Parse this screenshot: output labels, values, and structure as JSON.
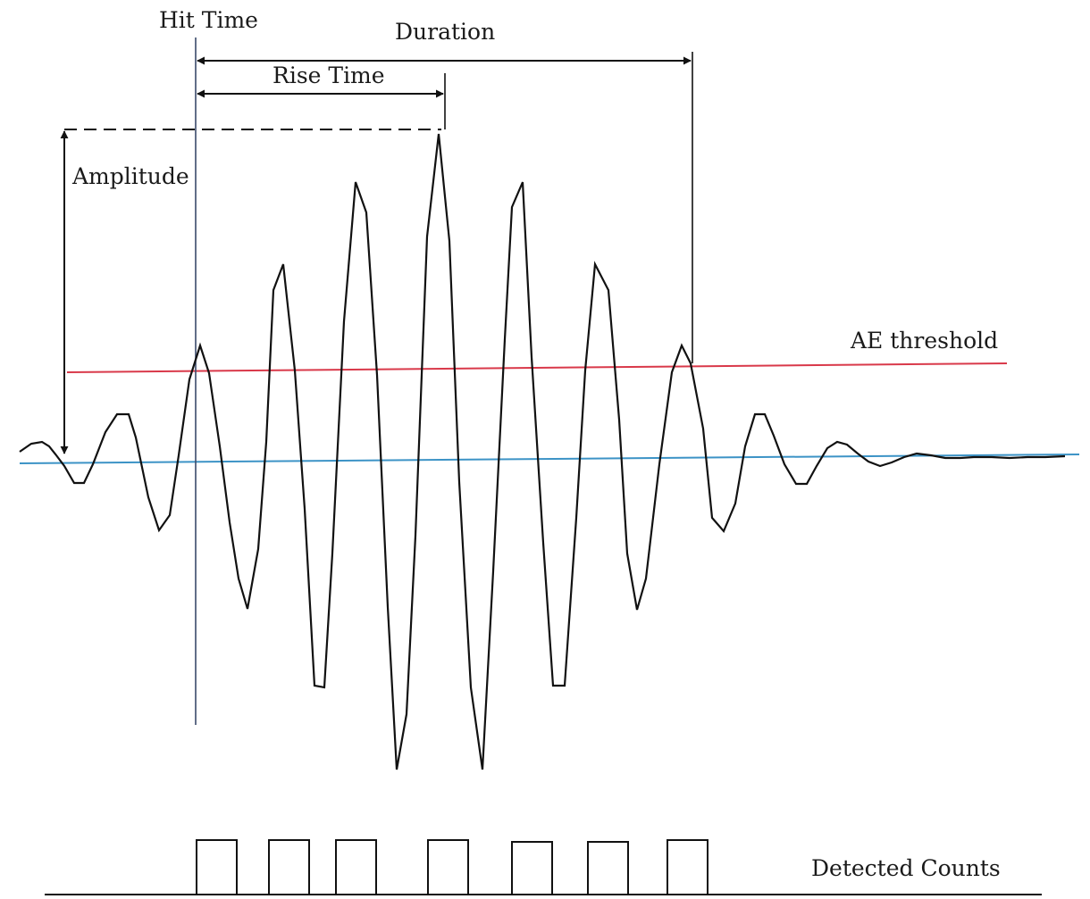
{
  "labels": {
    "hit_time": "Hit Time",
    "duration": "Duration",
    "rise_time": "Rise Time",
    "amplitude": "Amplitude",
    "threshold": "AE threshold",
    "counts": "Detected Counts"
  },
  "colors": {
    "waveform": "#111111",
    "threshold_line": "#d9394a",
    "baseline": "#3c93c6",
    "annotation": "#111111",
    "hit_time_marker": "#3a4a6a"
  },
  "detected_counts": 7
}
